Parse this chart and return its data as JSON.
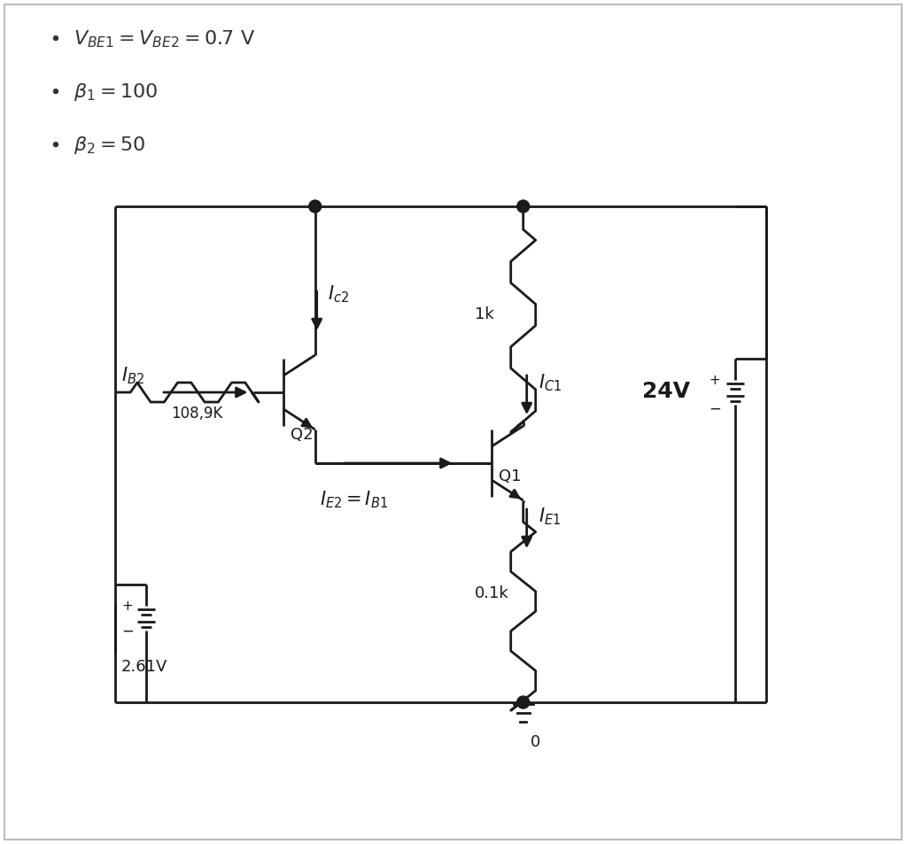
{
  "bg_color": "#ffffff",
  "line_color": "#1a1a1a",
  "figsize": [
    10.24,
    9.54
  ],
  "dpi": 100,
  "lw": 2.0,
  "bullet1": "V_{BE1} = V_{BE2} = 0.7\\,V",
  "bullet2": "\\beta_1 = 100",
  "bullet3": "\\beta_2 = 50",
  "fs_bullet": 16,
  "fs_label": 15,
  "fs_small": 13
}
